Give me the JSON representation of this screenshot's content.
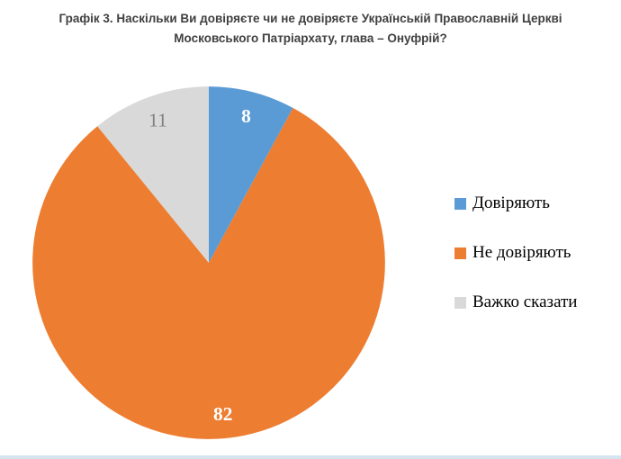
{
  "title": "Графік 3. Наскільки Ви довіряєте чи не довіряєте Українській Православній Церкві\nМосковського Патріархату, глава – Онуфрій?",
  "chart_data": {
    "type": "pie",
    "title": "Графік 3. Наскільки Ви довіряєте чи не довіряєте Українській Православній Церкві Московського Патріархату, глава – Онуфрій?",
    "labels": [
      "Довіряють",
      "Не довіряють",
      "Важко сказати"
    ],
    "values": [
      8,
      82,
      11
    ],
    "colors": [
      "#5B9BD5",
      "#ED7D31",
      "#D9D9D9"
    ],
    "label_colors": [
      "#ffffff",
      "#ffffff",
      "#7F7F7F"
    ],
    "label_bold": [
      true,
      true,
      false
    ],
    "legend_position": "right",
    "start_angle_deg": 0,
    "direction": "clockwise"
  },
  "legend": {
    "items": [
      {
        "label": "Довіряють"
      },
      {
        "label": "Не довіряють"
      },
      {
        "label": "Важко сказати"
      }
    ]
  }
}
